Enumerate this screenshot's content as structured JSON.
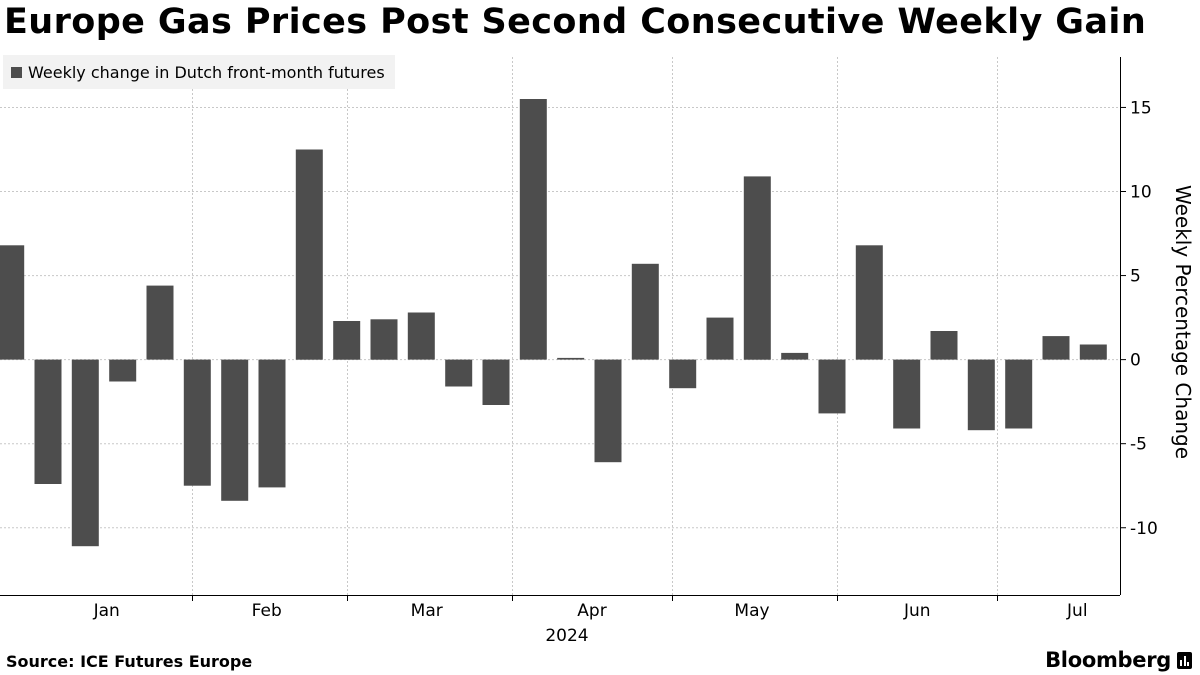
{
  "title": "Europe Gas Prices Post Second Consecutive Weekly Gain",
  "legend": "Weekly change in Dutch front-month futures",
  "source": "Source: ICE Futures Europe",
  "brand": "Bloomberg",
  "colors": {
    "bar": "#4d4d4d",
    "grid": "#c8c8c8",
    "axis": "#000000",
    "legend_bg": "#f2f2f2"
  },
  "chart_data": {
    "type": "bar",
    "title": "Europe Gas Prices Post Second Consecutive Weekly Gain",
    "ylabel": "Weekly Percentage Change",
    "xlabel": "2024",
    "ylim": [
      -14,
      18
    ],
    "y_ticks": [
      15,
      10,
      5,
      0,
      -5,
      -10
    ],
    "y_tick_labels": [
      "15",
      "10",
      "5",
      "0",
      "-5",
      "-10"
    ],
    "x_range": [
      "2023-12-27",
      "2024-07-24"
    ],
    "month_labels": [
      {
        "label": "Jan",
        "date": "2024-01-16"
      },
      {
        "label": "Feb",
        "date": "2024-02-15"
      },
      {
        "label": "Mar",
        "date": "2024-03-16"
      },
      {
        "label": "Apr",
        "date": "2024-04-16"
      },
      {
        "label": "May",
        "date": "2024-05-16"
      },
      {
        "label": "Jun",
        "date": "2024-06-16"
      },
      {
        "label": "Jul",
        "date": "2024-07-16"
      }
    ],
    "month_dividers": [
      "2024-02-01",
      "2024-03-01",
      "2024-04-01",
      "2024-05-01",
      "2024-06-01",
      "2024-07-01"
    ],
    "grid": true,
    "legend_position": "top-left",
    "series": [
      {
        "name": "Weekly change in Dutch front-month futures",
        "x": [
          "2023-12-29",
          "2024-01-05",
          "2024-01-12",
          "2024-01-19",
          "2024-01-26",
          "2024-02-02",
          "2024-02-09",
          "2024-02-16",
          "2024-02-23",
          "2024-03-01",
          "2024-03-08",
          "2024-03-15",
          "2024-03-22",
          "2024-03-29",
          "2024-04-05",
          "2024-04-12",
          "2024-04-19",
          "2024-04-26",
          "2024-05-03",
          "2024-05-10",
          "2024-05-17",
          "2024-05-24",
          "2024-05-31",
          "2024-06-07",
          "2024-06-14",
          "2024-06-21",
          "2024-06-28",
          "2024-07-05",
          "2024-07-12",
          "2024-07-19"
        ],
        "values": [
          6.8,
          -7.4,
          -11.1,
          -1.3,
          4.4,
          -7.5,
          -8.4,
          -7.6,
          12.5,
          2.3,
          2.4,
          2.8,
          -1.6,
          -2.7,
          15.5,
          0.1,
          -6.1,
          5.7,
          -1.7,
          2.5,
          10.9,
          0.4,
          -3.2,
          6.8,
          -4.1,
          1.7,
          -4.2,
          -4.1,
          1.4,
          0.9
        ]
      }
    ]
  }
}
